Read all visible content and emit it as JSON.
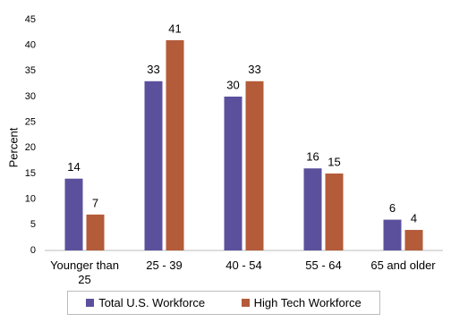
{
  "chart_data": {
    "type": "bar",
    "y_label": "Percent",
    "categories": [
      "Younger than 25",
      "25 - 39",
      "40 - 54",
      "55 - 64",
      "65 and older"
    ],
    "series": [
      {
        "name": "Total U.S. Workforce",
        "color": "#5b509c",
        "values": [
          14,
          33,
          30,
          16,
          6
        ]
      },
      {
        "name": "High Tech Workforce",
        "color": "#b45b39",
        "values": [
          7,
          41,
          33,
          15,
          4
        ]
      }
    ],
    "ylim": [
      0,
      45
    ],
    "yticks": [
      0,
      5,
      10,
      15,
      20,
      25,
      30,
      35,
      40,
      45
    ],
    "grid": false,
    "legend": "bottom"
  }
}
